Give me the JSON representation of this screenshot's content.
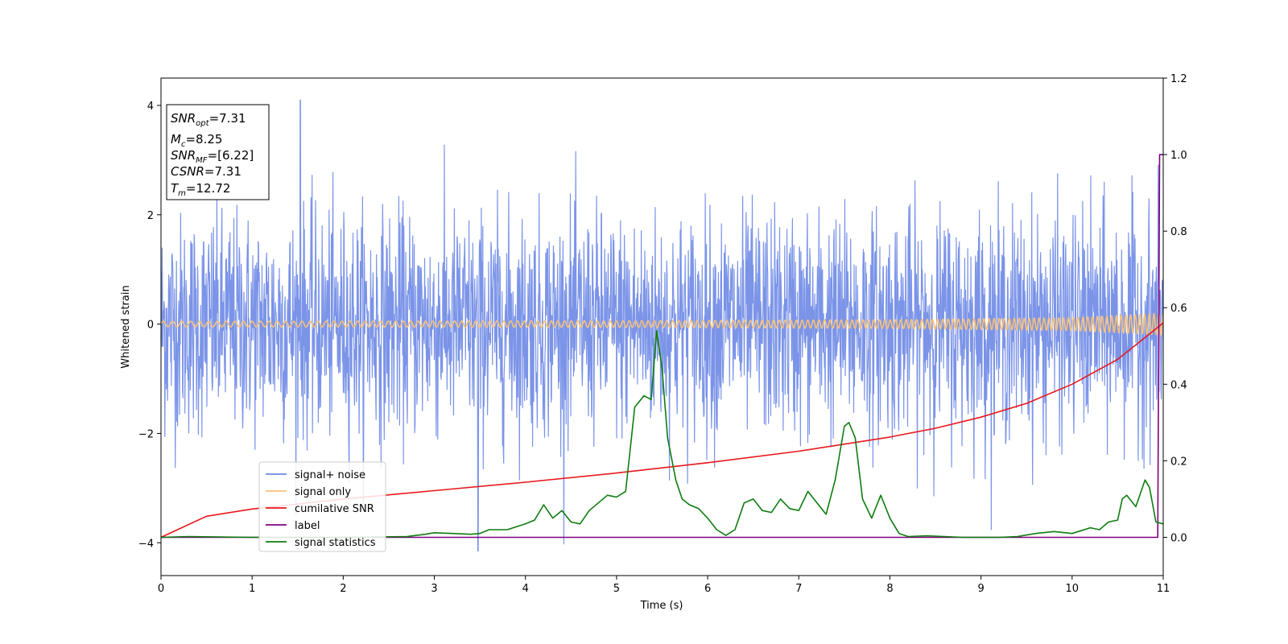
{
  "chart_data": {
    "type": "line",
    "xlabel": "Time (s)",
    "ylabel": "Whitened strain",
    "xlim": [
      0,
      11
    ],
    "ylim": [
      -4.6,
      4.5
    ],
    "y2lim": [
      -0.1,
      1.2
    ],
    "x_ticks": [
      "0",
      "1",
      "2",
      "3",
      "4",
      "5",
      "6",
      "7",
      "8",
      "9",
      "10",
      "11"
    ],
    "y_ticks": [
      "−4",
      "−2",
      "0",
      "2",
      "4"
    ],
    "y2_ticks": [
      "0.0",
      "0.2",
      "0.4",
      "0.6",
      "0.8",
      "1.0",
      "1.2"
    ],
    "grid": false,
    "legend_position": "lower-left",
    "info_box": {
      "snr_opt": {
        "base": "SNR",
        "sub": "opt",
        "value": "=7.31"
      },
      "mc": {
        "base": "M",
        "sub": "c",
        "value": "=8.25"
      },
      "snr_mf": {
        "base": "SNR",
        "sub": "MF",
        "value": "=[6.22]"
      },
      "csnr": {
        "base": "CSNR",
        "sub": "",
        "value": "=7.31"
      },
      "tm": {
        "base": "T",
        "sub": "m",
        "value": "=12.72"
      }
    },
    "series": [
      {
        "name": "signal+ noise",
        "color": "#6d88e6",
        "axis": "left",
        "kind": "noise",
        "envelope": {
          "x": [
            0,
            11
          ],
          "amplitude_1sigma": 1.0,
          "max_peak": [
            1.53,
            4.1
          ],
          "min_peak": [
            3.48,
            -4.15
          ]
        }
      },
      {
        "name": "signal only",
        "color": "#f7c17a",
        "axis": "left",
        "kind": "chirp",
        "amplitude": {
          "x": [
            0,
            5,
            8,
            10,
            11
          ],
          "y": [
            0.05,
            0.06,
            0.08,
            0.12,
            0.2
          ]
        }
      },
      {
        "name": "cumilative SNR",
        "color": "#e8171b",
        "axis": "right",
        "x": [
          0,
          0.5,
          1,
          2,
          3,
          4,
          5,
          6,
          7,
          8,
          8.5,
          9,
          9.5,
          10,
          10.5,
          11
        ],
        "y": [
          0.0,
          0.055,
          0.074,
          0.1,
          0.122,
          0.144,
          0.168,
          0.195,
          0.225,
          0.262,
          0.285,
          0.314,
          0.35,
          0.4,
          0.465,
          0.56
        ]
      },
      {
        "name": "label",
        "color": "#800080",
        "axis": "right",
        "x": [
          0,
          10.94,
          10.96,
          11
        ],
        "y": [
          0,
          0,
          1.0,
          1.0
        ]
      },
      {
        "name": "signal statistics",
        "color": "#0e7c0e",
        "axis": "right",
        "x": [
          0,
          0.3,
          1,
          2,
          2.7,
          2.9,
          3.0,
          3.2,
          3.4,
          3.5,
          3.6,
          3.8,
          4.0,
          4.1,
          4.2,
          4.3,
          4.4,
          4.5,
          4.6,
          4.7,
          4.8,
          4.9,
          5.0,
          5.1,
          5.2,
          5.25,
          5.3,
          5.38,
          5.44,
          5.5,
          5.56,
          5.65,
          5.72,
          5.8,
          5.9,
          6.0,
          6.1,
          6.2,
          6.3,
          6.4,
          6.5,
          6.6,
          6.7,
          6.8,
          6.9,
          7.0,
          7.1,
          7.2,
          7.3,
          7.4,
          7.5,
          7.55,
          7.62,
          7.7,
          7.8,
          7.9,
          8.0,
          8.1,
          8.2,
          8.4,
          8.6,
          8.8,
          9.0,
          9.2,
          9.4,
          9.6,
          9.8,
          10.0,
          10.2,
          10.3,
          10.4,
          10.5,
          10.55,
          10.6,
          10.7,
          10.8,
          10.85,
          10.92,
          11.0
        ],
        "y": [
          0.0,
          0.002,
          0.0,
          0.0,
          0.002,
          0.008,
          0.012,
          0.01,
          0.008,
          0.01,
          0.02,
          0.02,
          0.035,
          0.045,
          0.085,
          0.05,
          0.07,
          0.04,
          0.035,
          0.07,
          0.09,
          0.11,
          0.105,
          0.12,
          0.34,
          0.355,
          0.37,
          0.36,
          0.54,
          0.44,
          0.26,
          0.15,
          0.1,
          0.085,
          0.075,
          0.05,
          0.02,
          0.005,
          0.02,
          0.09,
          0.1,
          0.07,
          0.065,
          0.1,
          0.075,
          0.07,
          0.12,
          0.09,
          0.06,
          0.15,
          0.29,
          0.3,
          0.26,
          0.1,
          0.05,
          0.11,
          0.05,
          0.01,
          0.002,
          0.004,
          0.002,
          0.0,
          0.0,
          0.0,
          0.002,
          0.01,
          0.015,
          0.01,
          0.025,
          0.02,
          0.04,
          0.045,
          0.1,
          0.11,
          0.08,
          0.15,
          0.13,
          0.04,
          0.035
        ]
      }
    ]
  }
}
